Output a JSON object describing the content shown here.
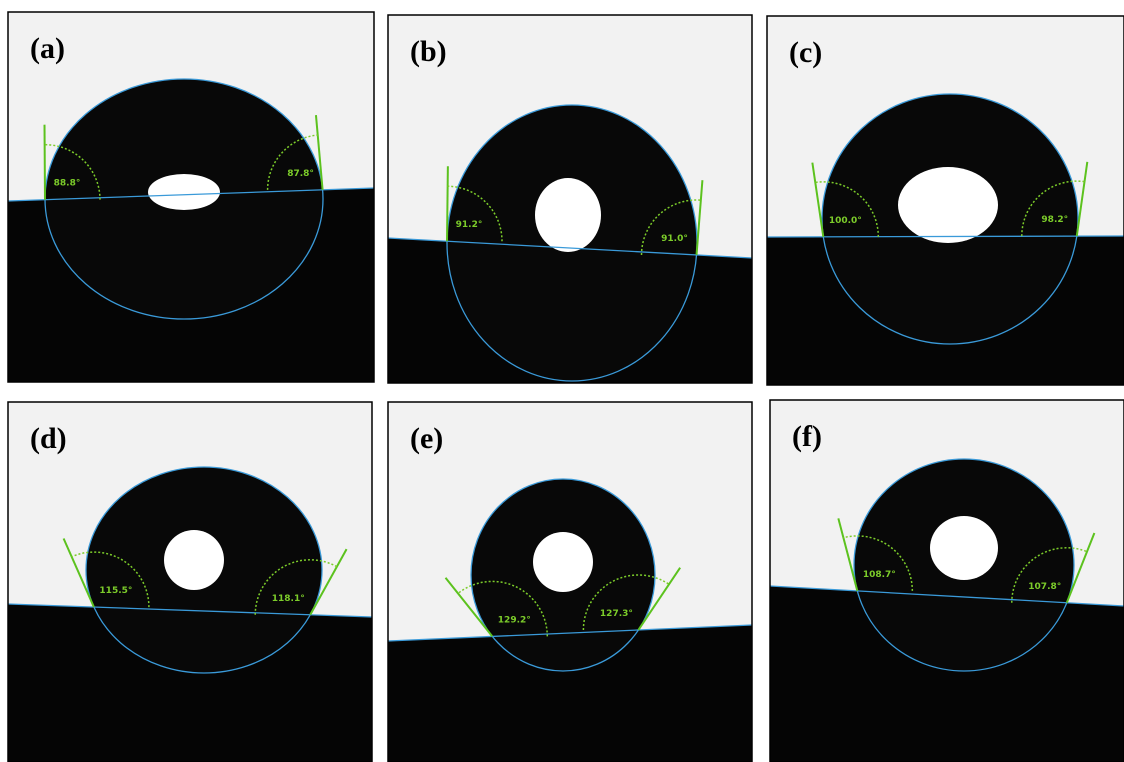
{
  "panels": [
    {
      "label": "(a)",
      "left_angle": "88.8°",
      "right_angle": "87.8°"
    },
    {
      "label": "(b)",
      "left_angle": "91.2°",
      "right_angle": "91.0°"
    },
    {
      "label": "(c)",
      "left_angle": "100.0°",
      "right_angle": "98.2°"
    },
    {
      "label": "(d)",
      "left_angle": "115.5°",
      "right_angle": "118.1°"
    },
    {
      "label": "(e)",
      "left_angle": "129.2°",
      "right_angle": "127.3°"
    },
    {
      "label": "(f)",
      "left_angle": "108.7°",
      "right_angle": "107.8°"
    }
  ]
}
